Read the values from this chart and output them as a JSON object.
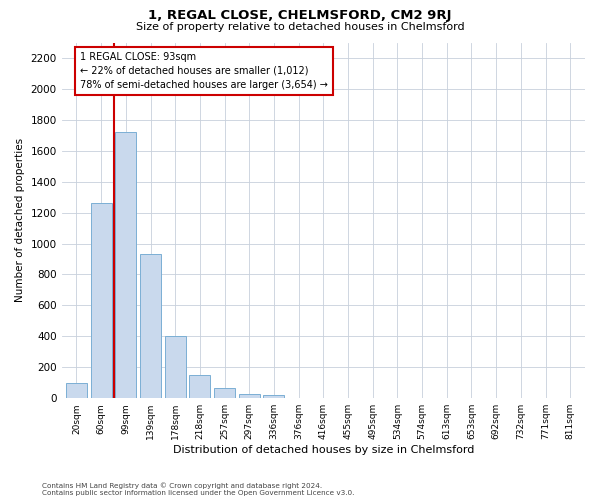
{
  "title": "1, REGAL CLOSE, CHELMSFORD, CM2 9RJ",
  "subtitle": "Size of property relative to detached houses in Chelmsford",
  "xlabel": "Distribution of detached houses by size in Chelmsford",
  "ylabel": "Number of detached properties",
  "categories": [
    "20sqm",
    "60sqm",
    "99sqm",
    "139sqm",
    "178sqm",
    "218sqm",
    "257sqm",
    "297sqm",
    "336sqm",
    "376sqm",
    "416sqm",
    "455sqm",
    "495sqm",
    "534sqm",
    "574sqm",
    "613sqm",
    "653sqm",
    "692sqm",
    "732sqm",
    "771sqm",
    "811sqm"
  ],
  "values": [
    100,
    1260,
    1720,
    930,
    400,
    150,
    65,
    30,
    20,
    0,
    0,
    0,
    0,
    0,
    0,
    0,
    0,
    0,
    0,
    0,
    0
  ],
  "bar_color": "#c9d9ed",
  "bar_edge_color": "#7bafd4",
  "highlight_bar_index": 2,
  "red_line_x": 1.5,
  "property_size": 93,
  "pct_smaller": 22,
  "count_smaller": 1012,
  "pct_larger_semi": 78,
  "count_larger_semi": 3654,
  "ylim": [
    0,
    2300
  ],
  "yticks": [
    0,
    200,
    400,
    600,
    800,
    1000,
    1200,
    1400,
    1600,
    1800,
    2000,
    2200
  ],
  "footnote1": "Contains HM Land Registry data © Crown copyright and database right 2024.",
  "footnote2": "Contains public sector information licensed under the Open Government Licence v3.0.",
  "bg_color": "#ffffff",
  "grid_color": "#c8d0dc",
  "annotation_box_edge_color": "#cc0000",
  "red_line_color": "#cc0000"
}
